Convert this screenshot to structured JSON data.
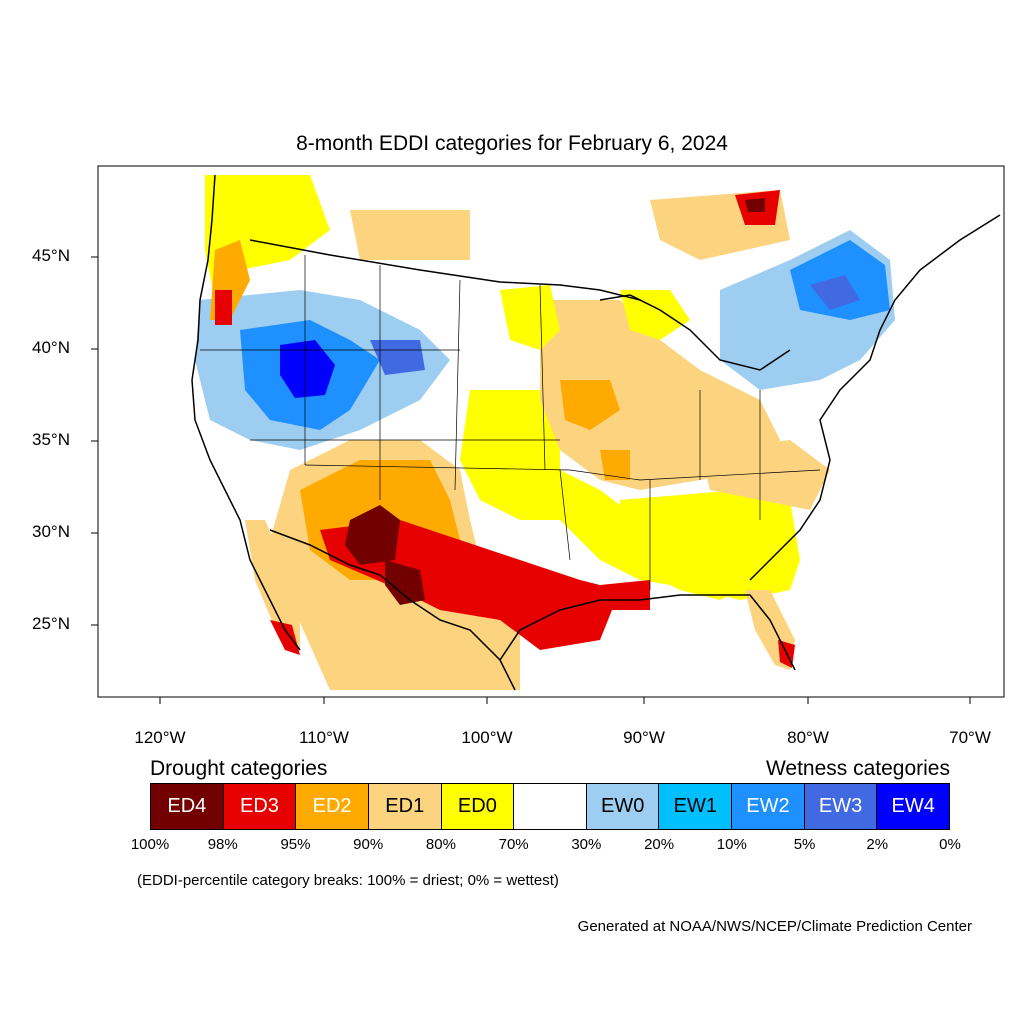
{
  "title": "8-month EDDI categories for February 6, 2024",
  "lat_labels": [
    "45°N",
    "40°N",
    "35°N",
    "30°N",
    "25°N"
  ],
  "lon_labels": [
    "120°W",
    "110°W",
    "100°W",
    "90°W",
    "80°W",
    "70°W"
  ],
  "legend": {
    "drought_heading": "Drought categories",
    "wetness_heading": "Wetness categories",
    "categories": [
      {
        "label": "ED4",
        "color": "#730000"
      },
      {
        "label": "ED3",
        "color": "#e60000"
      },
      {
        "label": "ED2",
        "color": "#ffaa00"
      },
      {
        "label": "ED1",
        "color": "#fcd37f"
      },
      {
        "label": "ED0",
        "color": "#ffff00"
      },
      {
        "label": "",
        "color": "#ffffff"
      },
      {
        "label": "EW0",
        "color": "#9dcdf0"
      },
      {
        "label": "EW1",
        "color": "#00bfff"
      },
      {
        "label": "EW2",
        "color": "#1e90ff"
      },
      {
        "label": "EW3",
        "color": "#4169e1"
      },
      {
        "label": "EW4",
        "color": "#0000ff"
      }
    ],
    "breaks": [
      "100%",
      "98%",
      "95%",
      "90%",
      "80%",
      "70%",
      "30%",
      "20%",
      "10%",
      "5%",
      "2%",
      "0%"
    ]
  },
  "note": "(EDDI-percentile category breaks: 100% = driest; 0% = wettest)",
  "credit": "Generated at NOAA/NWS/NCEP/Climate Prediction Center"
}
